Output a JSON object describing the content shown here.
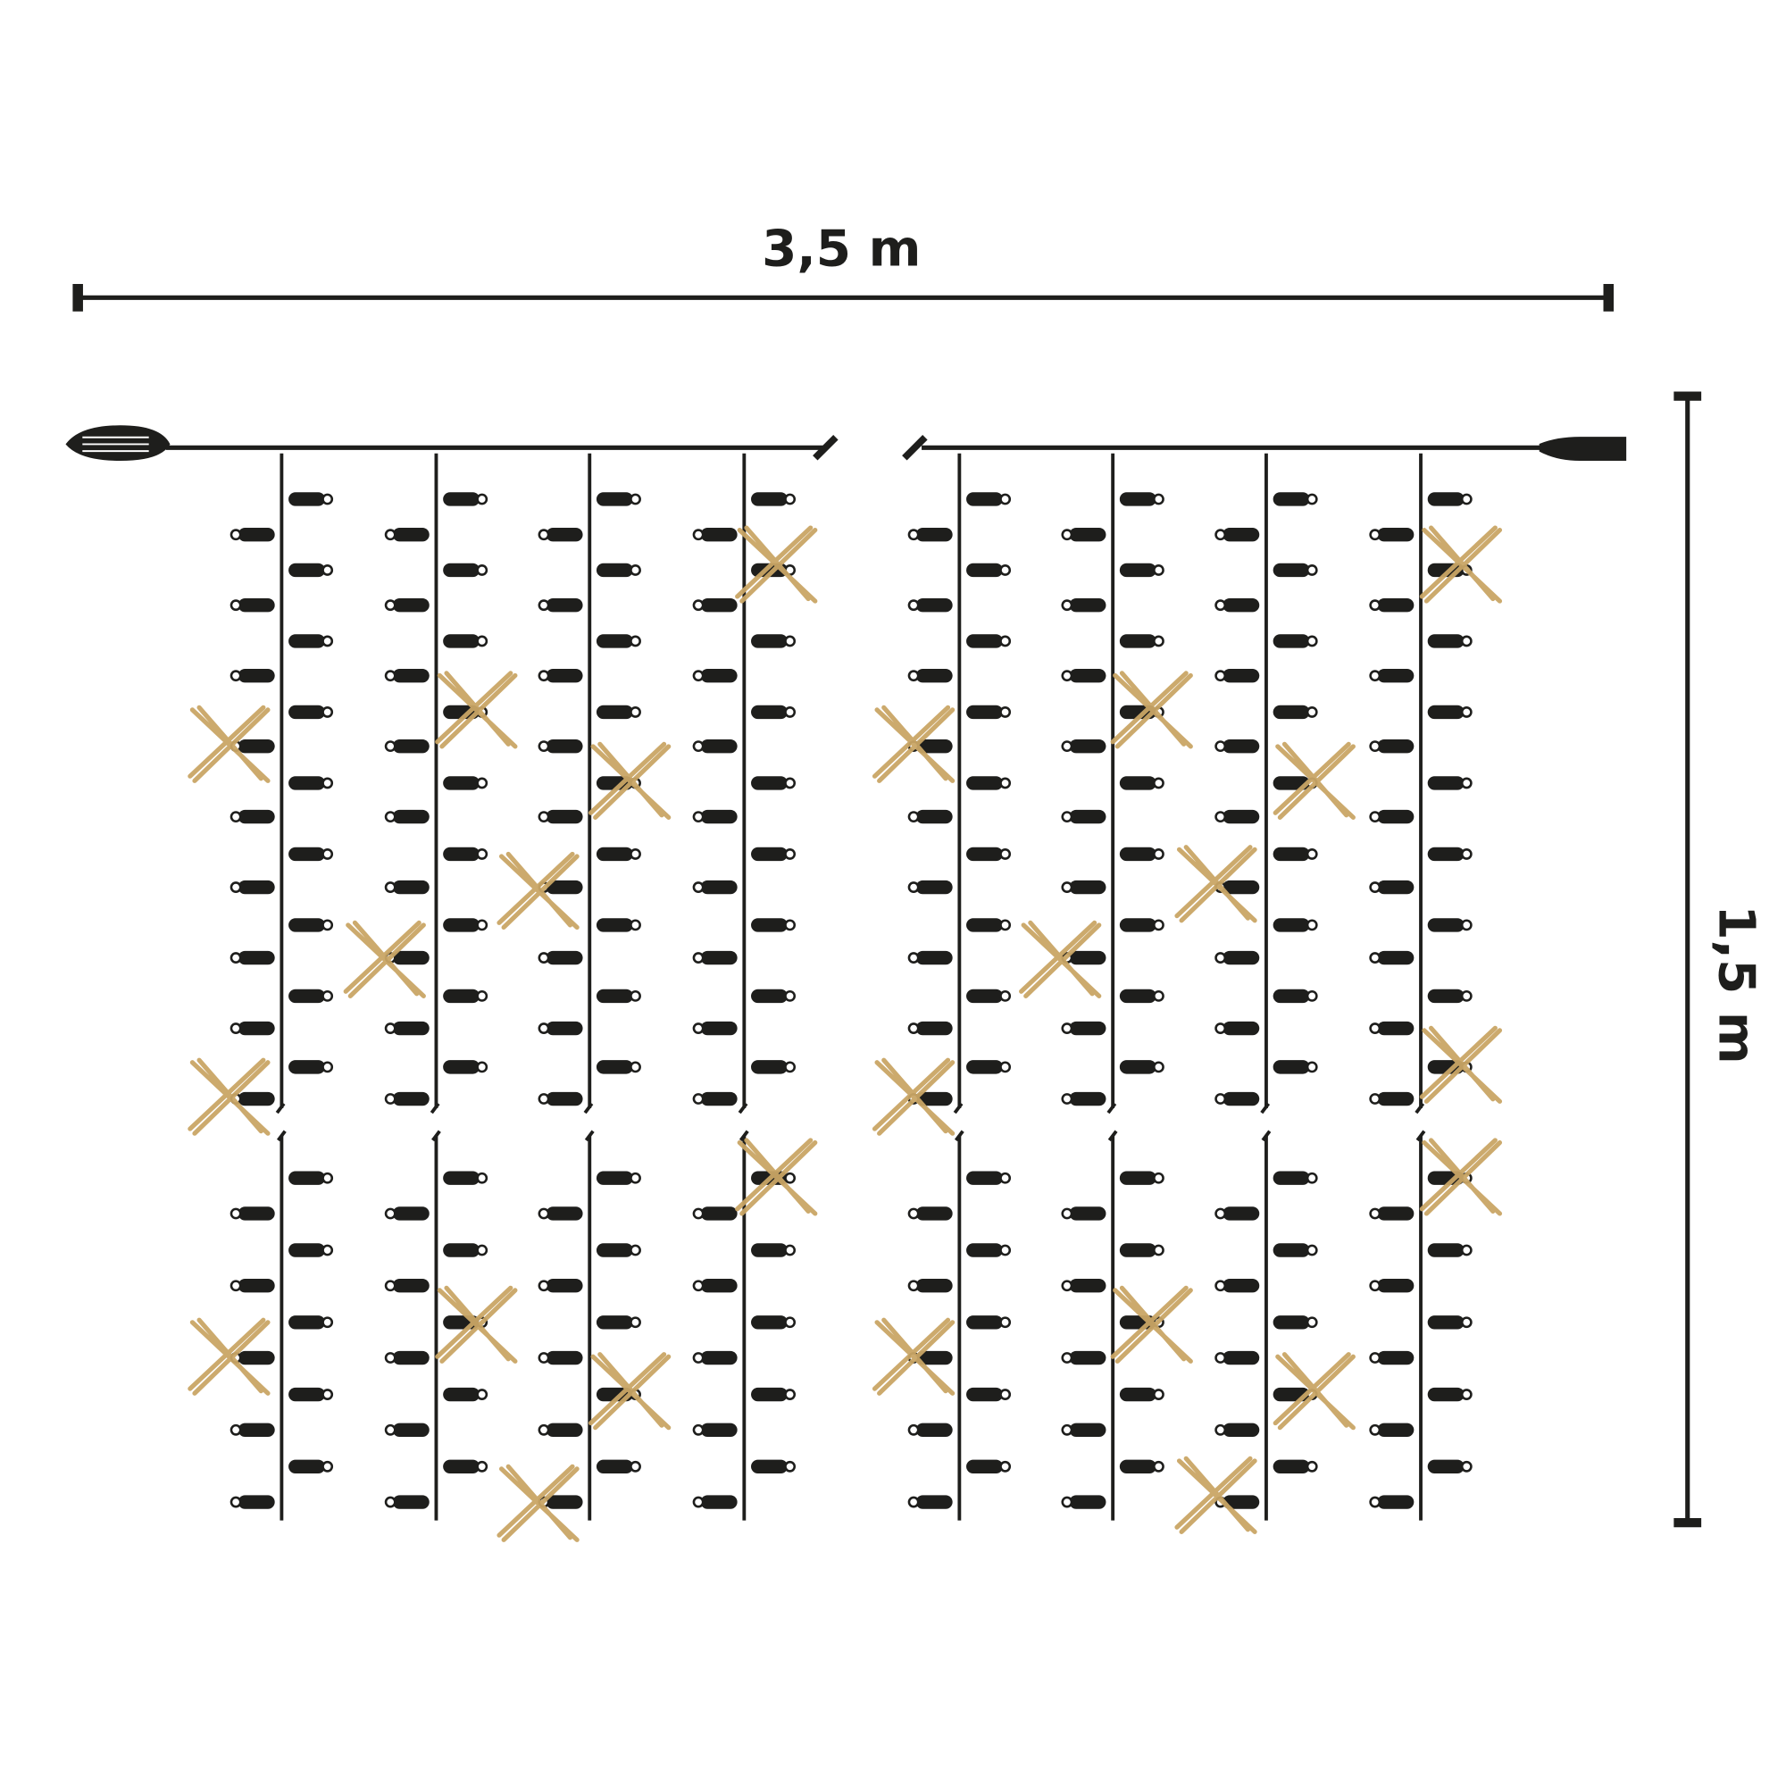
{
  "dimensions": {
    "width": "3,5 m",
    "height": "1,5 m"
  }
}
